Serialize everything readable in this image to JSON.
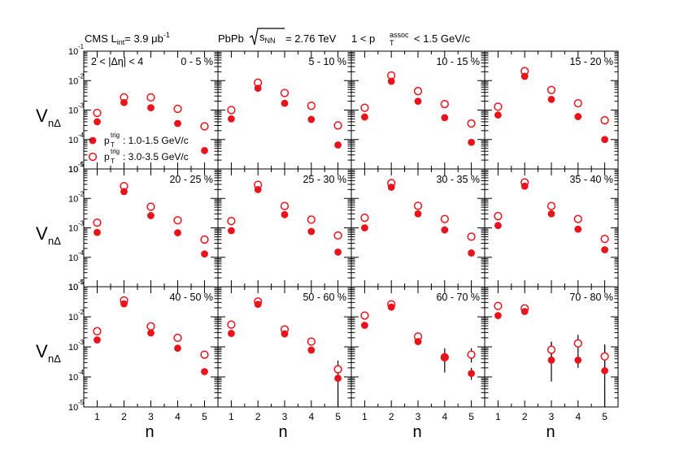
{
  "header": {
    "left_text": "CMS L",
    "left_sub": "int",
    "left_value": "= 3.9 μb",
    "left_sup": "-1",
    "mid_text": "PbPb ",
    "mid_s": "s",
    "mid_sub": "NN",
    "mid_value": "= 2.76 TeV",
    "right_pre": "1 < p",
    "right_sub": "T",
    "right_sup": "assoc",
    "right_post": "< 1.5 GeV/c"
  },
  "axes": {
    "ylabel_main": "V",
    "ylabel_sub": "nΔ",
    "xlabel": "n",
    "ytick_base": "10",
    "y_exponents": [
      "-5",
      "-4",
      "-3",
      "-2",
      "-1"
    ],
    "x_ticks": [
      "1",
      "2",
      "3",
      "4",
      "5"
    ]
  },
  "annotation": {
    "deta_text": "2 < |Δη| <  4"
  },
  "legend": {
    "series1_p": "p",
    "series1_sub": "T",
    "series1_sup": "trig",
    "series1_range": ": 1.0-1.5 GeV/c",
    "series2_p": "p",
    "series2_sub": "T",
    "series2_sup": "trig",
    "series2_range": ": 3.0-3.5 GeV/c"
  },
  "colors": {
    "marker": "#e8141b",
    "error_bar": "#000000"
  },
  "chart_data": {
    "type": "scatter",
    "x": [
      1,
      2,
      3,
      4,
      5
    ],
    "ylim": [
      1e-05,
      0.1
    ],
    "yscale": "log",
    "xlim": [
      0.5,
      5.5
    ],
    "grid": false,
    "legend_placement": "first panel, lower-left",
    "series_names": [
      "p_T^trig : 1.0-1.5 GeV/c",
      "p_T^trig : 3.0-3.5 GeV/c"
    ],
    "panels": [
      {
        "label": "0 - 5 %",
        "low": [
          0.0004,
          0.0018,
          0.0012,
          0.00035,
          4.2e-05
        ],
        "high": [
          0.0008,
          0.0027,
          0.0027,
          0.0011,
          0.00028
        ]
      },
      {
        "label": "5 - 10 %",
        "low": [
          0.0005,
          0.0055,
          0.0017,
          0.00048,
          6.5e-05
        ],
        "high": [
          0.001,
          0.0085,
          0.0038,
          0.0014,
          0.0003
        ]
      },
      {
        "label": "10 - 15 %",
        "low": [
          0.00058,
          0.0095,
          0.002,
          0.00055,
          8e-05
        ],
        "high": [
          0.0012,
          0.015,
          0.0044,
          0.0016,
          0.00035
        ]
      },
      {
        "label": "15 - 20 %",
        "low": [
          0.00068,
          0.014,
          0.0023,
          0.0006,
          0.0001
        ],
        "high": [
          0.0013,
          0.021,
          0.0048,
          0.0017,
          0.00045
        ]
      },
      {
        "label": "20 - 25 %",
        "low": [
          0.0007,
          0.017,
          0.0026,
          0.00068,
          0.00013
        ],
        "high": [
          0.0015,
          0.026,
          0.0052,
          0.0018,
          0.0004
        ]
      },
      {
        "label": "25 - 30 %",
        "low": [
          0.0008,
          0.02,
          0.0028,
          0.00075,
          0.00015
        ],
        "high": [
          0.0017,
          0.029,
          0.0055,
          0.0019,
          0.00055
        ]
      },
      {
        "label": "30 - 35 %",
        "low": [
          0.001,
          0.024,
          0.003,
          0.00085,
          0.00014
        ],
        "high": [
          0.0022,
          0.033,
          0.0056,
          0.002,
          0.0005
        ]
      },
      {
        "label": "35 - 40 %",
        "low": [
          0.0012,
          0.026,
          0.003,
          0.0009,
          0.00018
        ],
        "high": [
          0.0025,
          0.035,
          0.0055,
          0.002,
          0.00042
        ]
      },
      {
        "label": "40 - 50 %",
        "low": [
          0.0017,
          0.027,
          0.0029,
          0.0009,
          0.00015
        ],
        "high": [
          0.0033,
          0.035,
          0.0048,
          0.002,
          0.00055
        ]
      },
      {
        "label": "50 - 60 %",
        "low": [
          0.0028,
          0.026,
          0.0027,
          0.00078,
          9e-05
        ],
        "high": [
          0.0055,
          0.032,
          0.0038,
          0.0015,
          0.00018
        ],
        "err_high": [
          0,
          0,
          0,
          0,
          [
            1e-05,
            0.00035
          ]
        ]
      },
      {
        "label": "60 - 70 %",
        "low": [
          0.0052,
          0.021,
          0.0015,
          0.00045,
          0.00013
        ],
        "high": [
          0.011,
          0.026,
          0.0022,
          0.00045,
          0.00055
        ],
        "err_low": [
          0,
          0,
          0,
          [
            0.00014,
            0.0009
          ],
          [
            8e-05,
            0.0002
          ]
        ],
        "err_high": [
          0,
          0,
          0,
          0,
          [
            0.0003,
            0.0009
          ]
        ]
      },
      {
        "label": "70 - 80 %",
        "low": [
          0.011,
          0.015,
          0.00036,
          0.00036,
          0.00016
        ],
        "high": [
          0.023,
          0.019,
          0.0008,
          0.0013,
          0.00048
        ],
        "err_low": [
          0,
          0,
          [
            7e-05,
            0.0014
          ],
          [
            0.0002,
            0.0006
          ],
          [
            1e-05,
            0.0011
          ]
        ],
        "err_high": [
          0,
          0,
          [
            0.0003,
            0.0015
          ],
          [
            0.0006,
            0.0025
          ],
          [
            0.00015,
            0.0012
          ]
        ]
      }
    ]
  }
}
